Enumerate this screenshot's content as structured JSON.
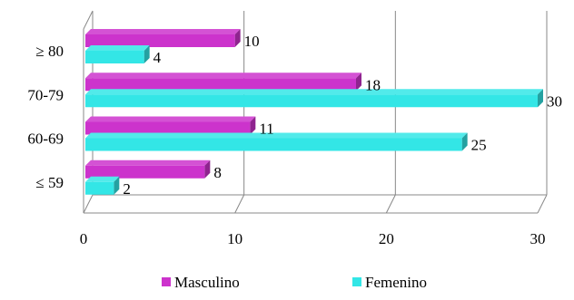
{
  "chart_data": {
    "type": "bar",
    "orientation": "horizontal",
    "style": "3d",
    "categories": [
      "≤ 59",
      "60-69",
      "70-79",
      "≥ 80"
    ],
    "series": [
      {
        "name": "Masculino",
        "color": "#cc33cc",
        "values": [
          8,
          11,
          18,
          10
        ]
      },
      {
        "name": "Femenino",
        "color": "#33e6e6",
        "values": [
          2,
          25,
          30,
          4
        ]
      }
    ],
    "x_ticks": [
      "0",
      "10",
      "20",
      "30"
    ],
    "xlim": [
      0,
      30
    ],
    "grid": true,
    "legend": "bottom",
    "data_labels": true
  }
}
